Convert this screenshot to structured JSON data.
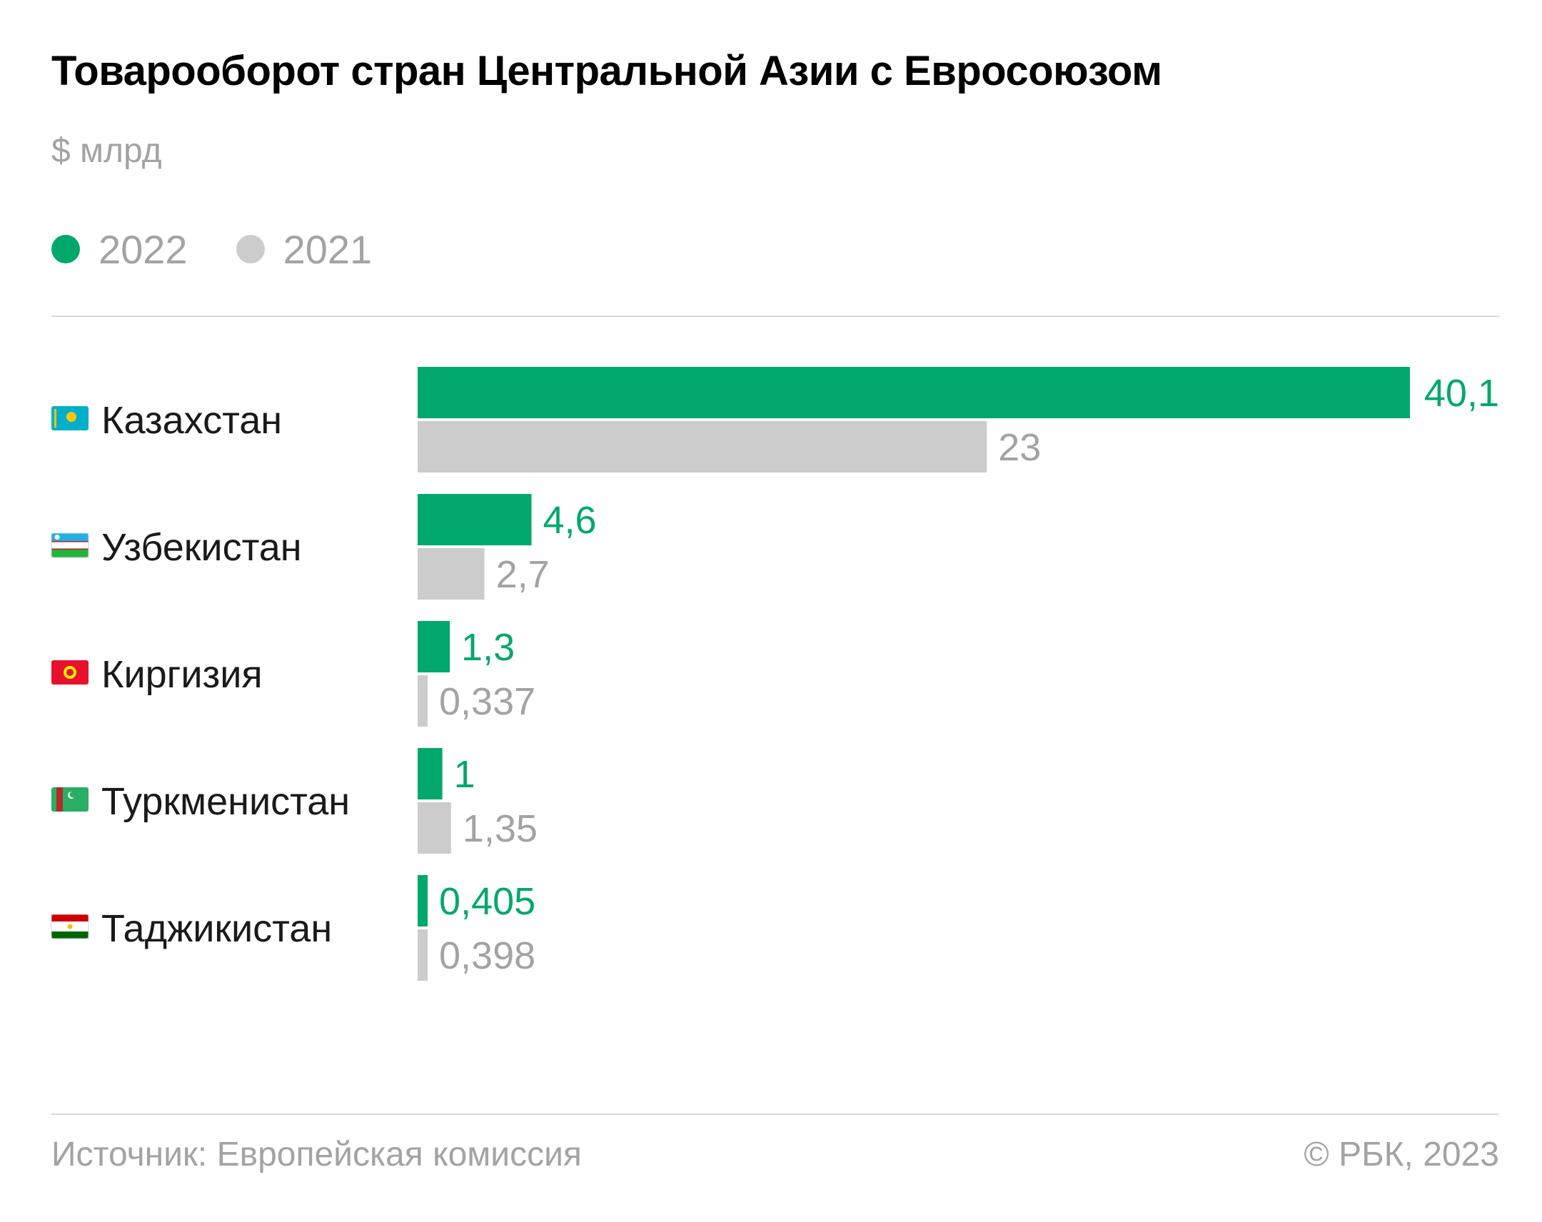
{
  "chart_data": {
    "type": "bar",
    "orientation": "horizontal",
    "title": "Товарооборот стран Центральной Азии с Евросоюзом",
    "subtitle": "$ млрд",
    "categories": [
      "Казахстан",
      "Узбекистан",
      "Киргизия",
      "Туркменистан",
      "Таджикистан"
    ],
    "value_labels": {
      "2022": [
        "40,1",
        "4,6",
        "1,3",
        "1",
        "0,405"
      ],
      "2021": [
        "23",
        "2,7",
        "0,337",
        "1,35",
        "0,398"
      ]
    },
    "series": [
      {
        "name": "2022",
        "color": "#00a86b",
        "values": [
          40.1,
          4.6,
          1.3,
          1.0,
          0.405
        ]
      },
      {
        "name": "2021",
        "color": "#cccccc",
        "values": [
          23,
          2.7,
          0.337,
          1.35,
          0.398
        ]
      }
    ],
    "xlim": [
      0,
      40.1
    ],
    "grid": false,
    "legend_placement": "top-left",
    "flag_icons": [
      "kazakhstan-flag-icon",
      "uzbekistan-flag-icon",
      "kyrgyzstan-flag-icon",
      "turkmenistan-flag-icon",
      "tajikistan-flag-icon"
    ]
  },
  "footer": {
    "source": "Источник: Европейская комиссия",
    "copyright": "© РБК, 2023"
  },
  "colors": {
    "accent_2022": "#00a86b",
    "bar_2021": "#cccccc",
    "value_2021_text": "#a3a3a3",
    "muted_text": "#a3a3a3"
  }
}
